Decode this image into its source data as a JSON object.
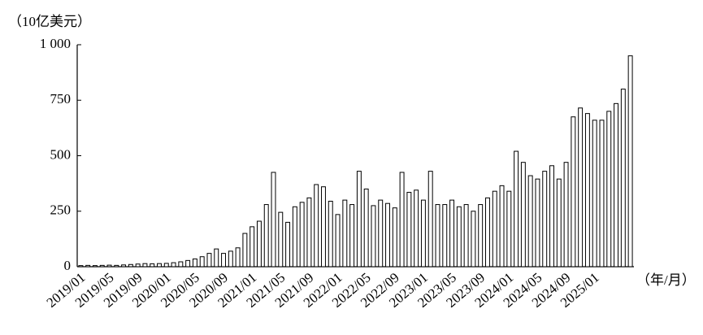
{
  "chart_data": {
    "type": "bar",
    "y_label": "（10亿美元）",
    "x_label": "（年/月）",
    "categories": [
      "2019/01",
      null,
      null,
      null,
      "2019/05",
      null,
      null,
      null,
      "2019/09",
      null,
      null,
      null,
      "2020/01",
      null,
      null,
      null,
      "2020/05",
      null,
      null,
      null,
      "2020/09",
      null,
      null,
      null,
      "2021/01",
      null,
      null,
      null,
      "2021/05",
      null,
      null,
      null,
      "2021/09",
      null,
      null,
      null,
      "2022/01",
      null,
      null,
      null,
      "2022/05",
      null,
      null,
      null,
      "2022/09",
      null,
      null,
      null,
      "2023/01",
      null,
      null,
      null,
      "2023/05",
      null,
      null,
      null,
      "2023/09",
      null,
      null,
      null,
      "2024/01",
      null,
      null,
      null,
      "2024/05",
      null,
      null,
      null,
      "2024/09",
      null,
      null,
      null,
      "2025/01",
      null,
      null,
      null,
      null,
      null
    ],
    "values": [
      5,
      6,
      5,
      6,
      7,
      6,
      8,
      10,
      12,
      14,
      13,
      14,
      15,
      18,
      22,
      28,
      35,
      45,
      60,
      80,
      60,
      70,
      85,
      150,
      180,
      205,
      280,
      425,
      245,
      200,
      270,
      290,
      310,
      370,
      360,
      295,
      235,
      300,
      280,
      430,
      350,
      275,
      300,
      285,
      265,
      425,
      335,
      345,
      300,
      430,
      280,
      280,
      300,
      270,
      280,
      250,
      280,
      310,
      340,
      365,
      340,
      520,
      470,
      410,
      395,
      430,
      455,
      395,
      470,
      675,
      715,
      690,
      660,
      660,
      700,
      735,
      800,
      950
    ],
    "color": "#ffffff",
    "ylim": [
      0,
      1000
    ],
    "yticks": [
      0,
      250,
      500,
      750,
      {
        "value": 1000,
        "label": "1 000"
      }
    ],
    "grid": false
  }
}
